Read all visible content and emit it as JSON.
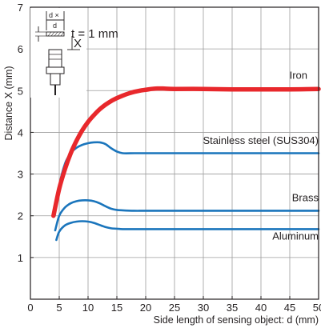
{
  "chart_data": {
    "type": "line",
    "title": "",
    "xlabel": "Side length of sensing object: d (mm)",
    "ylabel": "Distance X (mm)",
    "xlim": [
      0,
      50
    ],
    "ylim": [
      0,
      7
    ],
    "x_ticks": [
      "0",
      "5",
      "10",
      "15",
      "20",
      "25",
      "30",
      "35",
      "40",
      "45",
      "50"
    ],
    "y_ticks": [
      "1",
      "2",
      "3",
      "4",
      "5",
      "6",
      "7"
    ],
    "grid": true,
    "annotation": {
      "text": "t = 1 mm",
      "d_label": "d",
      "d_cross_label": "d ×",
      "x_label": "X",
      "description": "sensor and square target inset"
    },
    "series": [
      {
        "name": "Iron",
        "color": "#e8282c",
        "x": [
          4,
          5,
          6,
          7,
          8,
          9,
          10,
          11,
          12,
          13,
          14,
          15,
          16,
          17,
          18,
          19,
          20,
          21,
          22,
          23,
          25,
          30,
          35,
          40,
          45,
          50
        ],
        "y": [
          2.0,
          2.65,
          3.12,
          3.5,
          3.8,
          4.05,
          4.25,
          4.41,
          4.55,
          4.66,
          4.75,
          4.82,
          4.88,
          4.93,
          4.97,
          5.0,
          5.02,
          5.04,
          5.05,
          5.05,
          5.04,
          5.04,
          5.03,
          5.03,
          5.03,
          5.04
        ]
      },
      {
        "name": "Stainless steel (SUS304)",
        "color": "#1a75bc",
        "x": [
          4.2,
          5,
          6,
          7,
          8,
          9,
          10,
          11,
          12,
          13,
          14,
          15,
          16,
          18,
          20,
          25,
          30,
          40,
          50
        ],
        "y": [
          2.0,
          2.72,
          3.25,
          3.5,
          3.63,
          3.7,
          3.74,
          3.76,
          3.76,
          3.72,
          3.62,
          3.54,
          3.5,
          3.5,
          3.5,
          3.5,
          3.5,
          3.5,
          3.5
        ]
      },
      {
        "name": "Brass",
        "color": "#1a75bc",
        "x": [
          4.3,
          5,
          6,
          7,
          8,
          9,
          10,
          11,
          12,
          13,
          14,
          15,
          16,
          18,
          20,
          25,
          30,
          40,
          50
        ],
        "y": [
          1.65,
          2.0,
          2.2,
          2.3,
          2.35,
          2.37,
          2.37,
          2.35,
          2.3,
          2.23,
          2.17,
          2.14,
          2.13,
          2.12,
          2.12,
          2.12,
          2.12,
          2.12,
          2.12
        ]
      },
      {
        "name": "Aluminum",
        "color": "#1a75bc",
        "x": [
          4.5,
          5,
          6,
          7,
          8,
          9,
          10,
          11,
          12,
          13,
          14,
          15,
          16,
          18,
          20,
          25,
          30,
          40,
          50
        ],
        "y": [
          1.42,
          1.62,
          1.77,
          1.83,
          1.86,
          1.87,
          1.86,
          1.83,
          1.78,
          1.73,
          1.7,
          1.69,
          1.68,
          1.68,
          1.68,
          1.68,
          1.68,
          1.68,
          1.68
        ]
      }
    ]
  }
}
